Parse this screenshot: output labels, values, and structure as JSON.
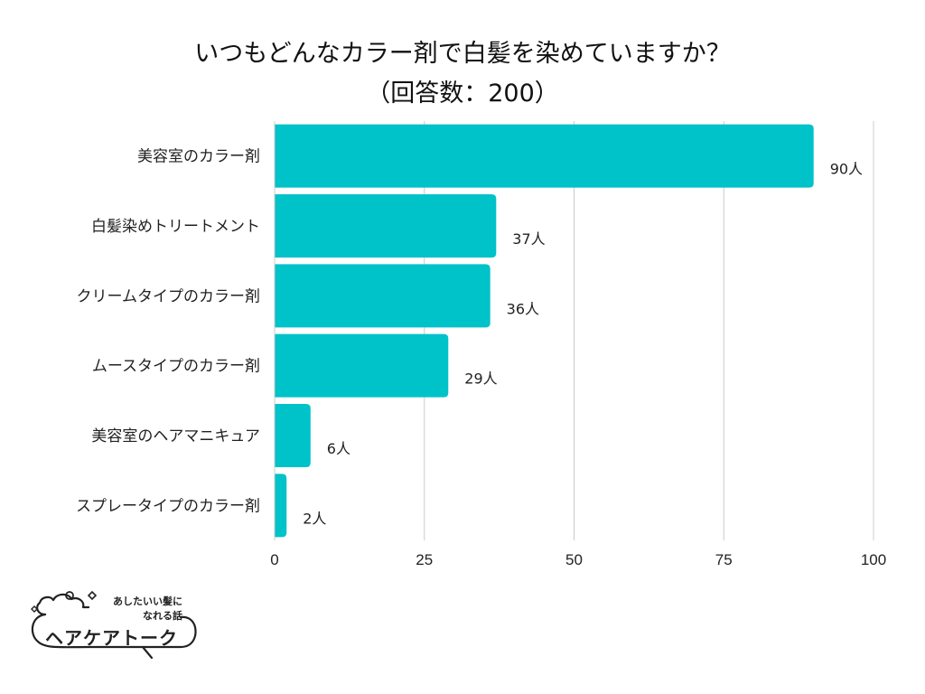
{
  "title": {
    "line1": "いつもどんなカラー剤で白髪を染めていますか？",
    "line2": "（回答数：200）"
  },
  "chart_data": {
    "type": "bar",
    "orientation": "horizontal",
    "categories": [
      "美容室のカラー剤",
      "白髪染めトリートメント",
      "クリームタイプのカラー剤",
      "ムースタイプのカラー剤",
      "美容室のヘアマニキュア",
      "スプレータイプのカラー剤"
    ],
    "values": [
      90,
      37,
      36,
      29,
      6,
      2
    ],
    "value_labels": [
      "90人",
      "37人",
      "36人",
      "29人",
      "6人",
      "2人"
    ],
    "xlim": [
      0,
      100
    ],
    "xticks": [
      0,
      25,
      50,
      75,
      100
    ],
    "xtick_labels": [
      "0",
      "25",
      "50",
      "75",
      "100"
    ],
    "grid": "vertical",
    "bar_color": "#00c2c9",
    "xlabel": "",
    "ylabel": ""
  },
  "logo": {
    "tagline_line1": "あしたいい髪に",
    "tagline_line2": "なれる話",
    "name": "ヘアケアトーク"
  }
}
